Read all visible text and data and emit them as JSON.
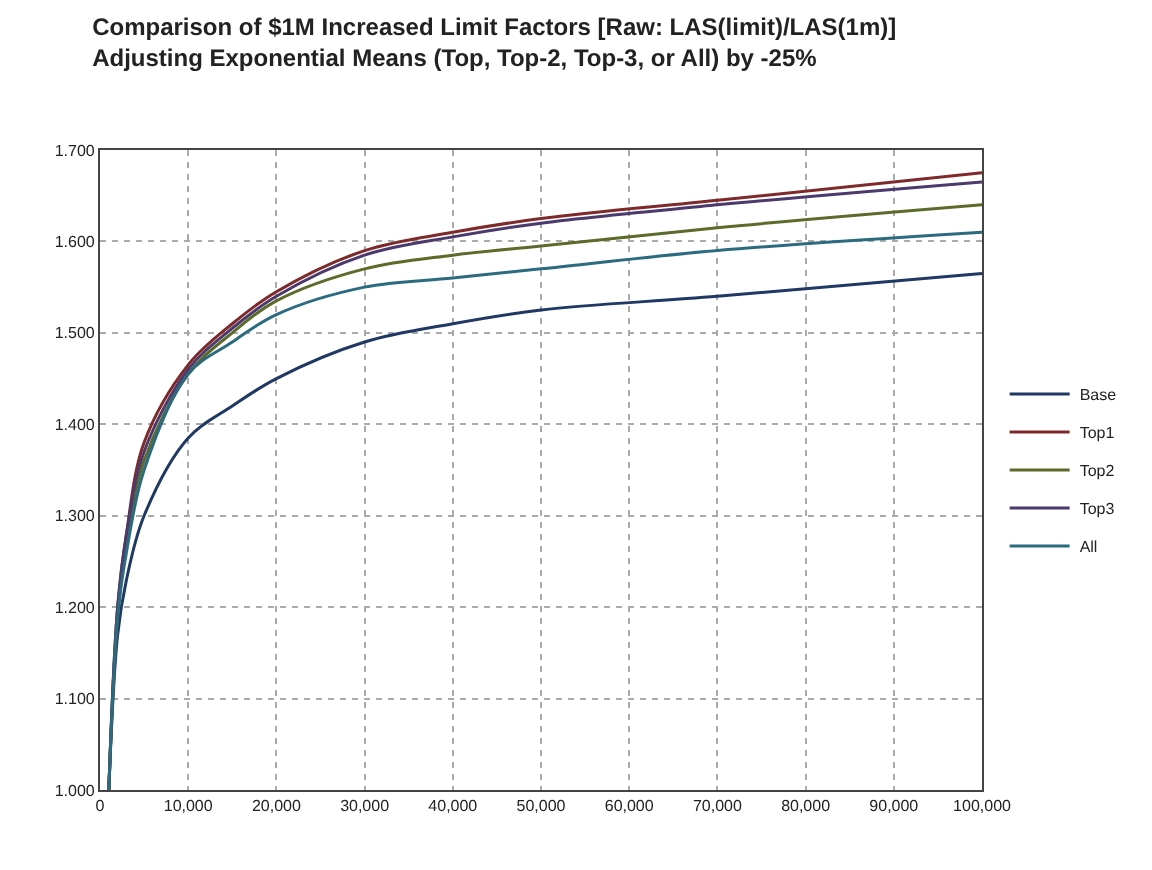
{
  "chart_data": {
    "type": "line",
    "title": "Comparison of $1M Increased Limit Factors [Raw: LAS(limit)/LAS(1m)]",
    "subtitle": "Adjusting Exponential Means (Top, Top-2, Top-3, or All) by -25%",
    "x": [
      1000,
      2000,
      3000,
      5000,
      10000,
      15000,
      20000,
      30000,
      40000,
      50000,
      70000,
      100000
    ],
    "series": [
      {
        "name": "Base",
        "color": "#1f3864",
        "values": [
          1.0,
          1.17,
          1.23,
          1.3,
          1.385,
          1.42,
          1.45,
          1.49,
          1.51,
          1.525,
          1.54,
          1.565
        ]
      },
      {
        "name": "Top1",
        "color": "#7f2a2a",
        "values": [
          1.0,
          1.2,
          1.28,
          1.38,
          1.465,
          1.51,
          1.545,
          1.59,
          1.61,
          1.625,
          1.645,
          1.675
        ]
      },
      {
        "name": "Top2",
        "color": "#5a6b2a",
        "values": [
          1.0,
          1.19,
          1.27,
          1.36,
          1.455,
          1.5,
          1.535,
          1.57,
          1.585,
          1.595,
          1.615,
          1.64
        ]
      },
      {
        "name": "Top3",
        "color": "#4b3a6b",
        "values": [
          1.0,
          1.2,
          1.28,
          1.37,
          1.46,
          1.505,
          1.54,
          1.585,
          1.605,
          1.62,
          1.64,
          1.665
        ]
      },
      {
        "name": "All",
        "color": "#2a6b7f",
        "values": [
          1.0,
          1.19,
          1.26,
          1.35,
          1.455,
          1.49,
          1.52,
          1.55,
          1.56,
          1.57,
          1.59,
          1.61
        ]
      }
    ],
    "xlim": [
      0,
      100000
    ],
    "xticks": [
      0,
      {
        "value": 10000,
        "label": "10,000"
      },
      {
        "value": 20000,
        "label": "20,000"
      },
      {
        "value": 30000,
        "label": "30,000"
      },
      {
        "value": 40000,
        "label": "40,000"
      },
      {
        "value": 50000,
        "label": "50,000"
      },
      {
        "value": 60000,
        "label": "60,000"
      },
      {
        "value": 70000,
        "label": "70,000"
      },
      {
        "value": 80000,
        "label": "80,000"
      },
      {
        "value": 90000,
        "label": "90,000"
      },
      {
        "value": 100000,
        "label": "100,000"
      }
    ],
    "ylim": [
      1.0,
      1.7
    ],
    "yticks": [
      {
        "value": 1.0,
        "label": "1.000"
      },
      {
        "value": 1.1,
        "label": "1.100"
      },
      {
        "value": 1.2,
        "label": "1.200"
      },
      {
        "value": 1.3,
        "label": "1.300"
      },
      {
        "value": 1.4,
        "label": "1.400"
      },
      {
        "value": 1.5,
        "label": "1.500"
      },
      {
        "value": 1.6,
        "label": "1.600"
      },
      {
        "value": 1.7,
        "label": "1.700"
      }
    ],
    "grid": true,
    "legend": "right",
    "marker": "none",
    "line_style": "solid"
  }
}
